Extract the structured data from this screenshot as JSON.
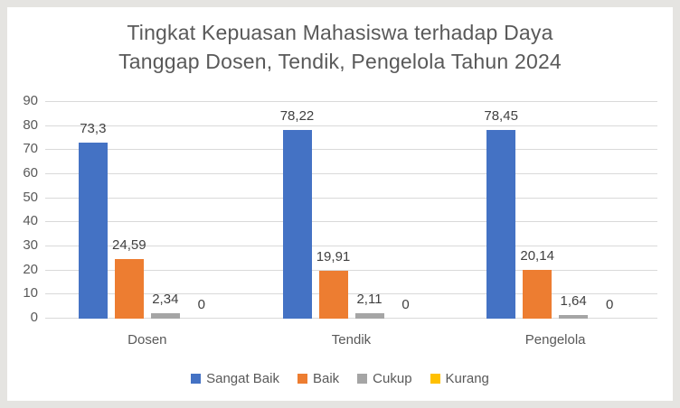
{
  "title_lines": [
    "Tingkat Kepuasan Mahasiswa terhadap Daya",
    "Tanggap Dosen, Tendik, Pengelola Tahun 2024"
  ],
  "colors": {
    "series_blue": "#4472C4",
    "series_orange": "#ED7D31",
    "series_gray": "#A5A5A5",
    "series_yellow": "#FFC000",
    "gridline": "#D9D9D9",
    "text_gray": "#595959",
    "data_label": "#404040",
    "chart_background": "#FFFFFF",
    "outer_background": "#E5E4E1"
  },
  "chart_data": {
    "type": "bar",
    "title": "Tingkat Kepuasan Mahasiswa terhadap Daya Tanggap Dosen, Tendik, Pengelola Tahun 2024",
    "categories": [
      "Dosen",
      "Tendik",
      "Pengelola"
    ],
    "series": [
      {
        "name": "Sangat Baik",
        "color": "#4472C4",
        "values": [
          73.3,
          78.22,
          78.45
        ],
        "labels": [
          "73,3",
          "78,22",
          "78,45"
        ]
      },
      {
        "name": "Baik",
        "color": "#ED7D31",
        "values": [
          24.59,
          19.91,
          20.14
        ],
        "labels": [
          "24,59",
          "19,91",
          "20,14"
        ]
      },
      {
        "name": "Cukup",
        "color": "#A5A5A5",
        "values": [
          2.34,
          2.11,
          1.64
        ],
        "labels": [
          "2,34",
          "2,11",
          "1,64"
        ]
      },
      {
        "name": "Kurang",
        "color": "#FFC000",
        "values": [
          0,
          0,
          0
        ],
        "labels": [
          "0",
          "0",
          "0"
        ]
      }
    ],
    "xlabel": "",
    "ylabel": "",
    "ylim": [
      0,
      90
    ],
    "yticks": [
      0,
      10,
      20,
      30,
      40,
      50,
      60,
      70,
      80,
      90
    ],
    "grid": true,
    "legend_position": "bottom"
  }
}
